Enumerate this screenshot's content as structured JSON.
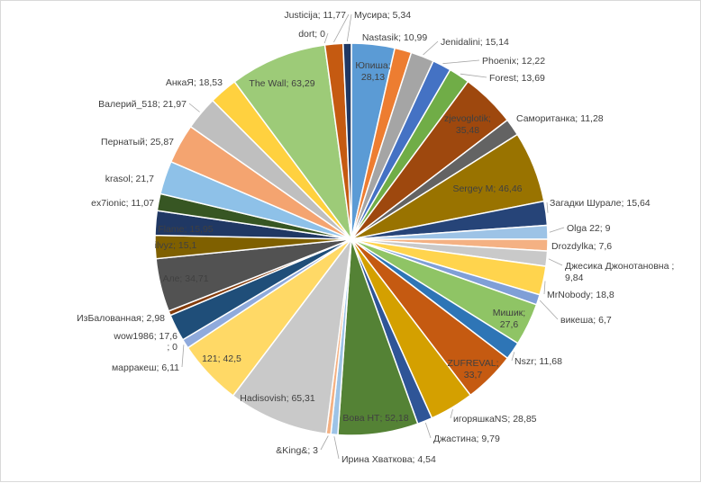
{
  "chart_data": {
    "type": "pie",
    "title": "",
    "legend": "none",
    "slices": [
      {
        "name": "Юпиша",
        "value": 28.13,
        "label": "Юпиша; 28,13",
        "color": "#5b9bd5"
      },
      {
        "name": "Nastasik",
        "value": 10.99,
        "label": "Nastasik; 10,99",
        "color": "#ed7d31"
      },
      {
        "name": "Jenidalini",
        "value": 15.14,
        "label": "Jenidalini; 15,14",
        "color": "#a5a5a5"
      },
      {
        "name": "Phoenix",
        "value": 12.22,
        "label": "Phoenix; 12,22",
        "color": "#4472c4"
      },
      {
        "name": "Forest",
        "value": 13.69,
        "label": "Forest; 13,69",
        "color": "#70ad47"
      },
      {
        "name": "zjevoglotik",
        "value": 35.48,
        "label": "zjevoglotik; 35,48",
        "color": "#9e480e"
      },
      {
        "name": "Самоританка",
        "value": 11.28,
        "label": "Самоританка; 11,28",
        "color": "#636363"
      },
      {
        "name": "Sergey M",
        "value": 46.46,
        "label": "Sergey M; 46,46",
        "color": "#997300"
      },
      {
        "name": "Загадки Шурале",
        "value": 15.64,
        "label": "Загадки Шурале; 15,64",
        "color": "#264478"
      },
      {
        "name": "Olga 22",
        "value": 9,
        "label": "Olga 22; 9",
        "color": "#9dc3e6"
      },
      {
        "name": "Drozdylka",
        "value": 7.6,
        "label": "Drozdylka; 7,6",
        "color": "#f4b183"
      },
      {
        "name": "Джесика Джонотановна",
        "value": 9.84,
        "label": "Джесика Джонотановна ; 9,84",
        "color": "#c9c9c9"
      },
      {
        "name": "MrNobody",
        "value": 18.8,
        "label": "MrNobody; 18,8",
        "color": "#ffd44d"
      },
      {
        "name": "викеша",
        "value": 6.7,
        "label": "викеша; 6,7",
        "color": "#7f9fd7"
      },
      {
        "name": "Мишик",
        "value": 27.6,
        "label": "Мишик; 27,6",
        "color": "#8fc465"
      },
      {
        "name": "Nszr",
        "value": 11.68,
        "label": "Nszr; 11,68",
        "color": "#2e75b6"
      },
      {
        "name": "ZUFREVAL",
        "value": 33.7,
        "label": "ZUFREVAL; 33,7",
        "color": "#c55a11"
      },
      {
        "name": "игоряшкаNS",
        "value": 28.85,
        "label": "игоряшкаNS; 28,85",
        "color": "#d4a000"
      },
      {
        "name": "Джастина",
        "value": 9.79,
        "label": "Джастина; 9,79",
        "color": "#2f5597"
      },
      {
        "name": "Вова НТ",
        "value": 52.18,
        "label": "Вова НТ; 52,18",
        "color": "#548235"
      },
      {
        "name": "Ирина Хваткова",
        "value": 4.54,
        "label": "Ирина Хваткова; 4,54",
        "color": "#9dc3e6"
      },
      {
        "name": "&King&",
        "value": 3,
        "label": "&King&; 3",
        "color": "#f4b183"
      },
      {
        "name": "Hadisovish",
        "value": 65.31,
        "label": "Hadisovish; 65,31",
        "color": "#c9c9c9"
      },
      {
        "name": "121",
        "value": 42.5,
        "label": "121; 42,5",
        "color": "#ffd966"
      },
      {
        "name": "марракеш",
        "value": 6.11,
        "label": "марракеш; 6,11",
        "color": "#8faadc"
      },
      {
        "name": "",
        "value": 0,
        "label": "; 0",
        "color": "#a9d18e"
      },
      {
        "name": "wow1986",
        "value": 17.6,
        "label": "wow1986; 17,6",
        "color": "#1f4e79"
      },
      {
        "name": "ИзБалованная",
        "value": 2.98,
        "label": "ИзБалованная; 2,98",
        "color": "#843c0c"
      },
      {
        "name": "Але",
        "value": 34.71,
        "label": "Але; 34,71",
        "color": "#525252"
      },
      {
        "name": "ilvyz",
        "value": 15.1,
        "label": "ilvyz; 15,1",
        "color": "#7f6000"
      },
      {
        "name": "Flame",
        "value": 15.95,
        "label": "Flame; 15,95",
        "color": "#203864"
      },
      {
        "name": "ex7ionic",
        "value": 11.07,
        "label": "ex7ionic; 11,07",
        "color": "#375623"
      },
      {
        "name": "krasol",
        "value": 21.7,
        "label": "krasol; 21,7",
        "color": "#8ec1e8"
      },
      {
        "name": "Пернатый",
        "value": 25.87,
        "label": "Пернатый; 25,87",
        "color": "#f4a470"
      },
      {
        "name": "Валерий_518",
        "value": 21.97,
        "label": "Валерий_518; 21,97",
        "color": "#bfbfbf"
      },
      {
        "name": "АнкаЯ",
        "value": 18.53,
        "label": "АнкаЯ; 18,53",
        "color": "#ffd13f"
      },
      {
        "name": "The Wall",
        "value": 63.29,
        "label": "The Wall; 63,29",
        "color": "#9dcb78"
      },
      {
        "name": "dort",
        "value": 0,
        "label": "dort; 0",
        "color": "#9dc3e6"
      },
      {
        "name": "Justicija",
        "value": 11.77,
        "label": "Justicija; 11,77",
        "color": "#c55a11"
      },
      {
        "name": "Мусира",
        "value": 5.34,
        "label": "Мусира; 5,34",
        "color": "#1f3864"
      }
    ]
  }
}
